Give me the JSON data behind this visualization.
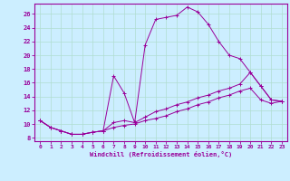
{
  "xlabel": "Windchill (Refroidissement éolien,°C)",
  "background_color": "#cceeff",
  "grid_color": "#b0ddd0",
  "line_color": "#990099",
  "xlim": [
    -0.5,
    23.5
  ],
  "ylim": [
    7.5,
    27.5
  ],
  "yticks": [
    8,
    10,
    12,
    14,
    16,
    18,
    20,
    22,
    24,
    26
  ],
  "xticks": [
    0,
    1,
    2,
    3,
    4,
    5,
    6,
    7,
    8,
    9,
    10,
    11,
    12,
    13,
    14,
    15,
    16,
    17,
    18,
    19,
    20,
    21,
    22,
    23
  ],
  "series1": [
    [
      0,
      10.5
    ],
    [
      1,
      9.5
    ],
    [
      2,
      9.0
    ],
    [
      3,
      8.5
    ],
    [
      4,
      8.5
    ],
    [
      5,
      8.8
    ],
    [
      6,
      9.0
    ],
    [
      7,
      17.0
    ],
    [
      8,
      14.5
    ],
    [
      9,
      10.2
    ],
    [
      10,
      21.5
    ],
    [
      11,
      25.2
    ],
    [
      12,
      25.5
    ],
    [
      13,
      25.8
    ],
    [
      14,
      27.0
    ],
    [
      15,
      26.3
    ],
    [
      16,
      24.5
    ],
    [
      17,
      22.0
    ],
    [
      18,
      20.0
    ],
    [
      19,
      19.5
    ],
    [
      20,
      17.5
    ],
    [
      21,
      15.5
    ],
    [
      22,
      13.5
    ],
    [
      23,
      13.3
    ]
  ],
  "series2": [
    [
      0,
      10.5
    ],
    [
      1,
      9.5
    ],
    [
      2,
      9.0
    ],
    [
      3,
      8.5
    ],
    [
      4,
      8.5
    ],
    [
      5,
      8.8
    ],
    [
      6,
      9.0
    ],
    [
      7,
      10.2
    ],
    [
      8,
      10.5
    ],
    [
      9,
      10.2
    ],
    [
      10,
      11.0
    ],
    [
      11,
      11.8
    ],
    [
      12,
      12.2
    ],
    [
      13,
      12.8
    ],
    [
      14,
      13.2
    ],
    [
      15,
      13.8
    ],
    [
      16,
      14.2
    ],
    [
      17,
      14.8
    ],
    [
      18,
      15.2
    ],
    [
      19,
      15.8
    ],
    [
      20,
      17.5
    ],
    [
      21,
      15.5
    ],
    [
      22,
      13.5
    ],
    [
      23,
      13.3
    ]
  ],
  "series3": [
    [
      0,
      10.5
    ],
    [
      1,
      9.5
    ],
    [
      2,
      9.0
    ],
    [
      3,
      8.5
    ],
    [
      4,
      8.5
    ],
    [
      5,
      8.8
    ],
    [
      6,
      9.0
    ],
    [
      7,
      9.5
    ],
    [
      8,
      9.8
    ],
    [
      9,
      10.0
    ],
    [
      10,
      10.5
    ],
    [
      11,
      10.8
    ],
    [
      12,
      11.2
    ],
    [
      13,
      11.8
    ],
    [
      14,
      12.2
    ],
    [
      15,
      12.8
    ],
    [
      16,
      13.2
    ],
    [
      17,
      13.8
    ],
    [
      18,
      14.2
    ],
    [
      19,
      14.8
    ],
    [
      20,
      15.2
    ],
    [
      21,
      13.5
    ],
    [
      22,
      13.0
    ],
    [
      23,
      13.3
    ]
  ]
}
